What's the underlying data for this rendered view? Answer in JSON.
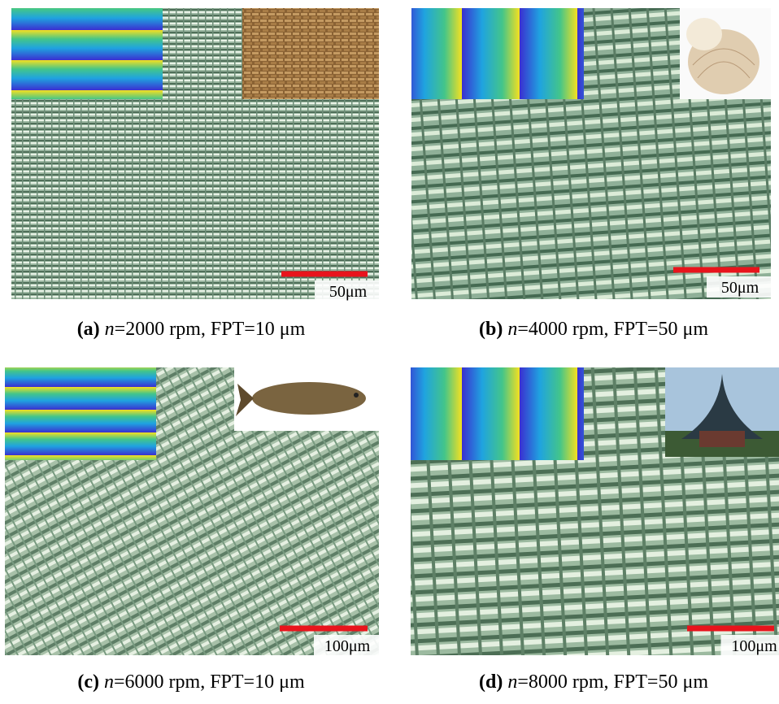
{
  "panels": [
    {
      "label": "(a)",
      "variable": "n",
      "caption": "=2000 rpm, FPT=10 μm",
      "scale_bar": "50μm"
    },
    {
      "label": "(b)",
      "variable": "n",
      "caption": "=4000 rpm, FPT=50 μm",
      "scale_bar": "50μm"
    },
    {
      "label": "(c)",
      "variable": "n",
      "caption": "=6000 rpm, FPT=10 μm",
      "scale_bar": "100μm"
    },
    {
      "label": "(d)",
      "variable": "n",
      "caption": "=8000 rpm, FPT=50 μm",
      "scale_bar": "100μm"
    }
  ]
}
